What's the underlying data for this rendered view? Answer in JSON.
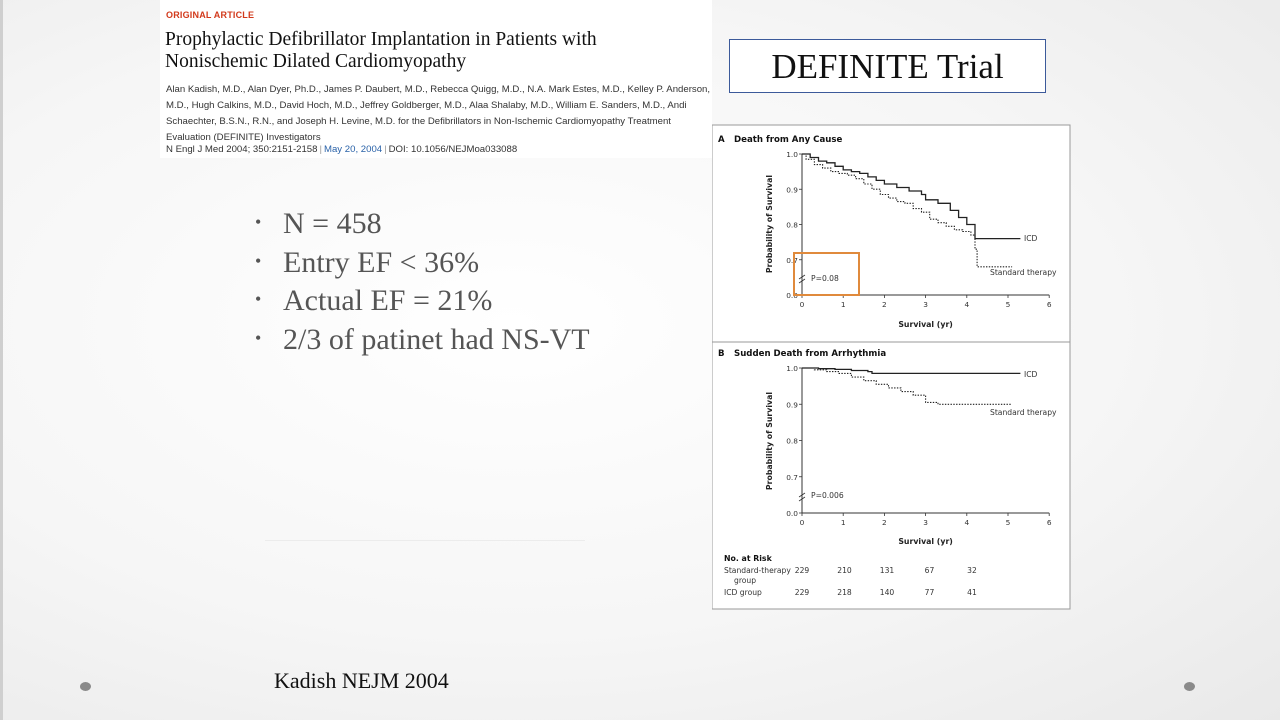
{
  "article": {
    "tag": "ORIGINAL ARTICLE",
    "title": "Prophylactic Defibrillator Implantation in Patients with Nonischemic Dilated Cardiomyopathy",
    "authors": "Alan Kadish, M.D., Alan Dyer, Ph.D., James P. Daubert, M.D., Rebecca Quigg, M.D., N.A. Mark Estes, M.D., Kelley P. Anderson, M.D., Hugh Calkins, M.D., David Hoch, M.D., Jeffrey Goldberger, M.D., Alaa Shalaby, M.D., William E. Sanders, M.D., Andi Schaechter, B.S.N., R.N., and Joseph H. Levine, M.D. for the Defibrillators in Non-Ischemic Cardiomyopathy Treatment Evaluation (DEFINITE) Investigators",
    "journal": "N Engl J Med 2004; 350:2151-2158",
    "date": "May 20, 2004",
    "doi": "DOI: 10.1056/NEJMoa033088"
  },
  "slide": {
    "title": "DEFINITE Trial",
    "bullets": [
      "N = 458",
      "Entry EF < 36%",
      "Actual EF = 21%",
      "2/3 of patinet had NS-VT"
    ],
    "footer": "Kadish NEJM 2004",
    "bullet_char": "•"
  },
  "colors": {
    "highlight": "#e08a3c",
    "title_border": "#3c5a9a",
    "article_tag": "#d2391b",
    "date_link": "#2a62a8"
  },
  "chart_data": [
    {
      "type": "line",
      "panel": "A",
      "title": "Death from Any Cause",
      "xlabel": "Survival (yr)",
      "ylabel": "Probability of Survival",
      "xlim": [
        0,
        6
      ],
      "ylim": [
        0.6,
        1.0
      ],
      "axis_break": true,
      "x_ticks": [
        "0",
        "1",
        "2",
        "3",
        "4",
        "5",
        "6"
      ],
      "y_ticks": [
        "0.0",
        "0.7",
        "0.8",
        "0.9",
        "1.0"
      ],
      "annotation": "P=0.08",
      "series": [
        {
          "name": "ICD",
          "style": "solid",
          "x": [
            0,
            0.2,
            0.4,
            0.6,
            0.8,
            1.0,
            1.2,
            1.4,
            1.6,
            1.8,
            2.0,
            2.3,
            2.6,
            2.9,
            3.0,
            3.3,
            3.6,
            3.8,
            4.0,
            4.2,
            5.3
          ],
          "y": [
            1.0,
            0.99,
            0.98,
            0.975,
            0.965,
            0.955,
            0.95,
            0.945,
            0.935,
            0.925,
            0.915,
            0.905,
            0.895,
            0.885,
            0.87,
            0.86,
            0.84,
            0.82,
            0.8,
            0.76,
            0.76
          ]
        },
        {
          "name": "Standard therapy",
          "style": "dotted",
          "x": [
            0,
            0.1,
            0.3,
            0.5,
            0.7,
            0.9,
            1.1,
            1.3,
            1.5,
            1.7,
            1.9,
            2.1,
            2.3,
            2.5,
            2.7,
            2.9,
            3.1,
            3.3,
            3.5,
            3.7,
            3.9,
            4.1,
            4.2,
            4.25,
            5.1
          ],
          "y": [
            1.0,
            0.985,
            0.97,
            0.96,
            0.95,
            0.945,
            0.94,
            0.93,
            0.915,
            0.9,
            0.885,
            0.875,
            0.865,
            0.86,
            0.845,
            0.835,
            0.815,
            0.805,
            0.795,
            0.785,
            0.78,
            0.77,
            0.73,
            0.68,
            0.68
          ]
        }
      ]
    },
    {
      "type": "line",
      "panel": "B",
      "title": "Sudden Death from Arrhythmia",
      "xlabel": "Survival (yr)",
      "ylabel": "Probability of Survival",
      "xlim": [
        0,
        6
      ],
      "ylim": [
        0.6,
        1.0
      ],
      "axis_break": true,
      "x_ticks": [
        "0",
        "1",
        "2",
        "3",
        "4",
        "5",
        "6"
      ],
      "y_ticks": [
        "0.0",
        "0.7",
        "0.8",
        "0.9",
        "1.0"
      ],
      "annotation": "P=0.006",
      "series": [
        {
          "name": "ICD",
          "style": "solid",
          "x": [
            0,
            0.4,
            0.8,
            1.2,
            1.6,
            1.7,
            2.0,
            3.0,
            4.0,
            5.3
          ],
          "y": [
            1.0,
            0.998,
            0.996,
            0.993,
            0.99,
            0.985,
            0.985,
            0.985,
            0.985,
            0.985
          ]
        },
        {
          "name": "Standard therapy",
          "style": "dotted",
          "x": [
            0,
            0.3,
            0.6,
            0.9,
            1.2,
            1.5,
            1.8,
            2.1,
            2.4,
            2.7,
            3.0,
            3.3,
            4.0,
            5.1
          ],
          "y": [
            1.0,
            0.995,
            0.99,
            0.985,
            0.975,
            0.965,
            0.955,
            0.945,
            0.935,
            0.925,
            0.905,
            0.9,
            0.9,
            0.9
          ]
        }
      ]
    }
  ],
  "risk_table": {
    "title": "No. at Risk",
    "rows": [
      {
        "label": "Standard-therapy",
        "label2": "group",
        "values": [
          "229",
          "210",
          "131",
          "67",
          "32"
        ]
      },
      {
        "label": "ICD group",
        "label2": "",
        "values": [
          "229",
          "218",
          "140",
          "77",
          "41"
        ]
      }
    ]
  }
}
